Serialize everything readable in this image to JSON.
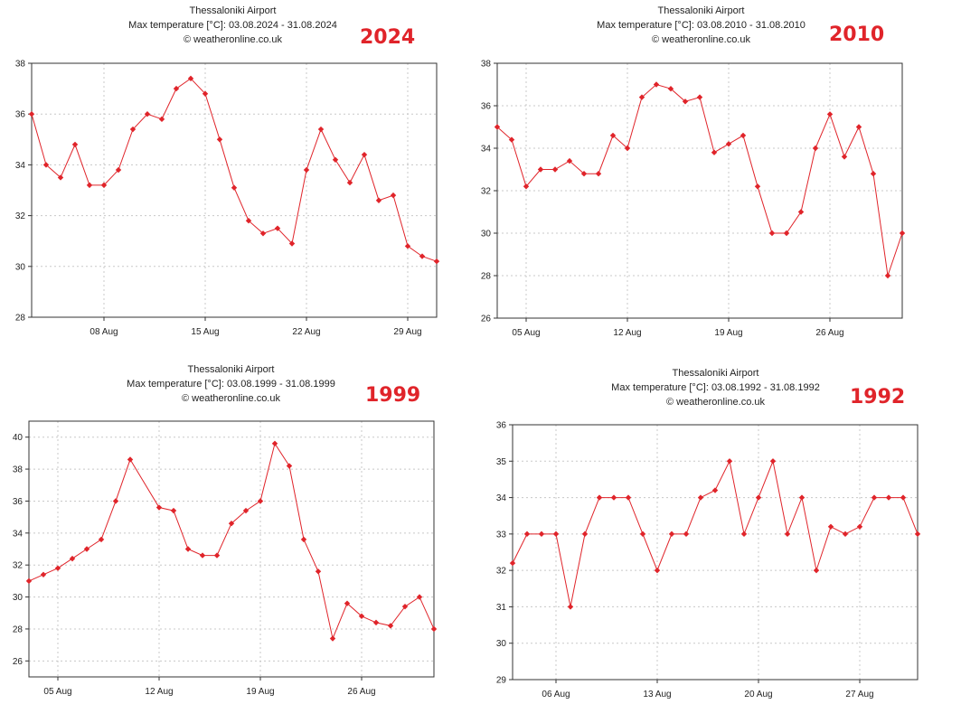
{
  "charts": [
    {
      "year_badge": "2024",
      "color": "#e0242a",
      "chart_data": {
        "type": "line",
        "title": "Thessaloniki Airport",
        "subtitle": "Max temperature [°C]: 03.08.2024 - 31.08.2024",
        "credit": "© weatheronline.co.uk",
        "xlabel": "",
        "ylabel": "",
        "x_range": [
          3,
          31
        ],
        "ylim": [
          28,
          38
        ],
        "yticks": [
          28,
          30,
          32,
          34,
          36,
          38
        ],
        "xticks": [
          {
            "day": 8,
            "label": "08 Aug"
          },
          {
            "day": 15,
            "label": "15 Aug"
          },
          {
            "day": 22,
            "label": "22 Aug"
          },
          {
            "day": 29,
            "label": "29 Aug"
          }
        ],
        "days": [
          3,
          4,
          5,
          6,
          7,
          8,
          9,
          10,
          11,
          12,
          13,
          14,
          15,
          16,
          17,
          18,
          19,
          20,
          21,
          22,
          23,
          24,
          25,
          26,
          27,
          28,
          29,
          30,
          31
        ],
        "values": [
          36.0,
          34.0,
          33.5,
          34.8,
          33.2,
          33.2,
          33.8,
          35.4,
          36.0,
          35.8,
          37.0,
          37.4,
          36.8,
          35.0,
          33.1,
          31.8,
          31.3,
          31.5,
          30.9,
          33.8,
          35.4,
          34.2,
          33.3,
          34.4,
          32.6,
          32.8,
          30.8,
          30.4,
          30.2
        ],
        "grid": true
      }
    },
    {
      "year_badge": "2010",
      "color": "#e0242a",
      "chart_data": {
        "type": "line",
        "title": "Thessaloniki Airport",
        "subtitle": "Max temperature [°C]: 03.08.2010 - 31.08.2010",
        "credit": "© weatheronline.co.uk",
        "xlabel": "",
        "ylabel": "",
        "x_range": [
          3,
          31
        ],
        "ylim": [
          26,
          38
        ],
        "yticks": [
          26,
          28,
          30,
          32,
          34,
          36,
          38
        ],
        "xticks": [
          {
            "day": 5,
            "label": "05 Aug"
          },
          {
            "day": 12,
            "label": "12 Aug"
          },
          {
            "day": 19,
            "label": "19 Aug"
          },
          {
            "day": 26,
            "label": "26 Aug"
          }
        ],
        "days": [
          3,
          4,
          5,
          6,
          7,
          8,
          9,
          10,
          11,
          12,
          13,
          14,
          15,
          16,
          17,
          18,
          19,
          20,
          21,
          22,
          23,
          24,
          25,
          26,
          27,
          28,
          29,
          30,
          31
        ],
        "values": [
          35.0,
          34.4,
          32.2,
          33.0,
          33.0,
          33.4,
          32.8,
          32.8,
          34.6,
          34.0,
          36.4,
          37.0,
          36.8,
          36.2,
          36.4,
          33.8,
          34.2,
          34.6,
          32.2,
          30.0,
          30.0,
          31.0,
          34.0,
          35.6,
          33.6,
          35.0,
          32.8,
          28.0,
          30.0
        ],
        "grid": true
      }
    },
    {
      "year_badge": "1999",
      "color": "#e0242a",
      "chart_data": {
        "type": "line",
        "title": "Thessaloniki Airport",
        "subtitle": "Max temperature [°C]: 03.08.1999 - 31.08.1999",
        "credit": "© weatheronline.co.uk",
        "xlabel": "",
        "ylabel": "",
        "x_range": [
          3,
          31
        ],
        "ylim": [
          25,
          41
        ],
        "yticks": [
          26,
          28,
          30,
          32,
          34,
          36,
          38,
          40
        ],
        "xticks": [
          {
            "day": 5,
            "label": "05 Aug"
          },
          {
            "day": 12,
            "label": "12 Aug"
          },
          {
            "day": 19,
            "label": "19 Aug"
          },
          {
            "day": 26,
            "label": "26 Aug"
          }
        ],
        "days": [
          3,
          4,
          5,
          6,
          7,
          8,
          9,
          10,
          12,
          13,
          14,
          15,
          16,
          17,
          18,
          19,
          20,
          21,
          22,
          23,
          24,
          25,
          26,
          27,
          28,
          29,
          30,
          31
        ],
        "values": [
          31.0,
          31.4,
          31.8,
          32.4,
          33.0,
          33.6,
          36.0,
          38.6,
          35.6,
          35.4,
          33.0,
          32.6,
          32.6,
          34.6,
          35.4,
          36.0,
          39.6,
          38.2,
          33.6,
          31.6,
          27.4,
          29.6,
          28.8,
          28.4,
          28.2,
          29.4,
          30.0,
          28.0
        ],
        "grid": true
      }
    },
    {
      "year_badge": "1992",
      "color": "#e0242a",
      "chart_data": {
        "type": "line",
        "title": "Thessaloniki Airport",
        "subtitle": "Max temperature [°C]: 03.08.1992 - 31.08.1992",
        "credit": "© weatheronline.co.uk",
        "xlabel": "",
        "ylabel": "",
        "x_range": [
          3,
          31
        ],
        "ylim": [
          29,
          36
        ],
        "yticks": [
          29,
          30,
          31,
          32,
          33,
          34,
          35,
          36
        ],
        "xticks": [
          {
            "day": 6,
            "label": "06 Aug"
          },
          {
            "day": 13,
            "label": "13 Aug"
          },
          {
            "day": 20,
            "label": "20 Aug"
          },
          {
            "day": 27,
            "label": "27 Aug"
          }
        ],
        "days": [
          3,
          4,
          5,
          6,
          7,
          8,
          9,
          10,
          11,
          12,
          13,
          14,
          15,
          16,
          17,
          18,
          19,
          20,
          21,
          22,
          23,
          24,
          25,
          26,
          27,
          28,
          29,
          30,
          31
        ],
        "values": [
          32.2,
          33.0,
          33.0,
          33.0,
          31.0,
          33.0,
          34.0,
          34.0,
          34.0,
          33.0,
          32.0,
          33.0,
          33.0,
          34.0,
          34.2,
          35.0,
          33.0,
          34.0,
          35.0,
          33.0,
          34.0,
          32.0,
          33.2,
          33.0,
          33.2,
          34.0,
          34.0,
          34.0,
          33.0
        ],
        "grid": true
      }
    }
  ]
}
